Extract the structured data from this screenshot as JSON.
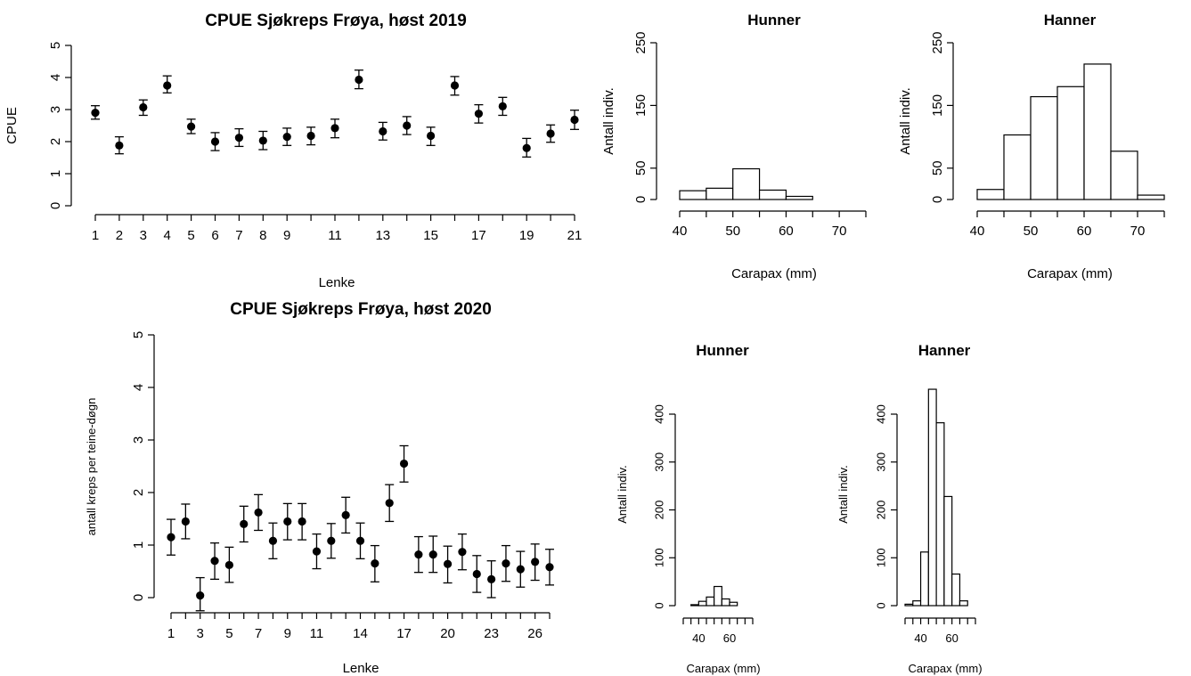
{
  "chart_data": [
    {
      "type": "scatter",
      "subtype": "point-with-error-bars",
      "title": "CPUE Sjøkreps  Frøya, høst 2019",
      "xlabel": "Lenke",
      "ylabel": "CPUE",
      "ylim": [
        0,
        5
      ],
      "yticks": [
        0,
        1,
        2,
        3,
        4,
        5
      ],
      "xticks": [
        1,
        2,
        3,
        4,
        5,
        6,
        7,
        8,
        9,
        10,
        11,
        12,
        13,
        14,
        15,
        16,
        17,
        18,
        19,
        20,
        21
      ],
      "xtick_labels": [
        "1",
        "2",
        "3",
        "4",
        "5",
        "6",
        "7",
        "8",
        "9",
        "",
        "11",
        "",
        "13",
        "",
        "15",
        "",
        "17",
        "",
        "19",
        "",
        "21"
      ],
      "x": [
        1,
        2,
        3,
        4,
        5,
        6,
        7,
        8,
        9,
        10,
        11,
        12,
        13,
        14,
        15,
        16,
        17,
        18,
        19,
        20,
        21
      ],
      "y": [
        2.9,
        1.88,
        3.07,
        3.75,
        2.47,
        2.0,
        2.12,
        2.03,
        2.15,
        2.18,
        2.42,
        3.93,
        2.32,
        2.5,
        2.18,
        3.75,
        2.87,
        3.1,
        1.8,
        2.25,
        2.68
      ],
      "err_low": [
        2.7,
        1.62,
        2.82,
        3.52,
        2.25,
        1.72,
        1.85,
        1.75,
        1.88,
        1.9,
        2.12,
        3.65,
        2.05,
        2.22,
        1.88,
        3.45,
        2.58,
        2.82,
        1.52,
        1.98,
        2.38
      ],
      "err_high": [
        3.12,
        2.15,
        3.3,
        4.05,
        2.7,
        2.28,
        2.4,
        2.32,
        2.42,
        2.45,
        2.7,
        4.23,
        2.6,
        2.78,
        2.45,
        4.03,
        3.15,
        3.38,
        2.1,
        2.52,
        2.98
      ],
      "grid": false
    },
    {
      "type": "bar",
      "subtype": "histogram",
      "title": "Hunner",
      "xlabel": "Carapax (mm)",
      "ylabel": "Antall indiv.",
      "bins": [
        [
          40,
          45
        ],
        [
          45,
          50
        ],
        [
          50,
          55
        ],
        [
          55,
          60
        ],
        [
          60,
          65
        ],
        [
          65,
          70
        ],
        [
          70,
          75
        ]
      ],
      "values": [
        14,
        18,
        49,
        15,
        5,
        0,
        0
      ],
      "xticks": [
        40,
        50,
        60,
        70
      ],
      "yticks": [
        0,
        50,
        150,
        250
      ],
      "ylim": [
        0,
        250
      ]
    },
    {
      "type": "bar",
      "subtype": "histogram",
      "title": "Hanner",
      "xlabel": "Carapax (mm)",
      "ylabel": "Antall indiv.",
      "bins": [
        [
          40,
          45
        ],
        [
          45,
          50
        ],
        [
          50,
          55
        ],
        [
          55,
          60
        ],
        [
          60,
          65
        ],
        [
          65,
          70
        ],
        [
          70,
          75
        ]
      ],
      "values": [
        16,
        103,
        164,
        180,
        216,
        77,
        7
      ],
      "xticks": [
        40,
        50,
        60,
        70
      ],
      "yticks": [
        0,
        50,
        150,
        250
      ],
      "ylim": [
        0,
        250
      ]
    },
    {
      "type": "scatter",
      "subtype": "point-with-error-bars",
      "title": "CPUE Sjøkreps Frøya, høst 2020",
      "xlabel": "Lenke",
      "ylabel": "antall kreps per teine-døgn",
      "ylim": [
        0,
        5
      ],
      "yticks": [
        0,
        1,
        2,
        3,
        4,
        5
      ],
      "xticks": [
        1,
        2,
        3,
        4,
        5,
        6,
        7,
        8,
        9,
        10,
        11,
        12,
        13,
        14,
        15,
        16,
        17,
        18,
        19,
        20,
        21,
        22,
        23,
        24,
        25,
        26,
        27
      ],
      "xtick_labels": [
        "1",
        "",
        "3",
        "",
        "5",
        "",
        "7",
        "",
        "9",
        "",
        "11",
        "",
        "",
        "14",
        "",
        "",
        "17",
        "",
        "",
        "20",
        "",
        "",
        "23",
        "",
        "",
        "26",
        ""
      ],
      "x": [
        1,
        2,
        3,
        4,
        5,
        6,
        7,
        8,
        9,
        10,
        11,
        12,
        13,
        14,
        15,
        16,
        17,
        18,
        19,
        20,
        21,
        22,
        23,
        24,
        25,
        26,
        27
      ],
      "y": [
        1.15,
        1.45,
        0.04,
        0.7,
        0.62,
        1.4,
        1.62,
        1.08,
        1.45,
        1.45,
        0.88,
        1.08,
        1.57,
        1.08,
        0.65,
        1.8,
        2.55,
        0.82,
        0.82,
        0.64,
        0.87,
        0.45,
        0.35,
        0.65,
        0.54,
        0.68,
        0.58
      ],
      "err_low": [
        0.81,
        1.12,
        -0.25,
        0.35,
        0.29,
        1.06,
        1.28,
        0.74,
        1.1,
        1.1,
        0.55,
        0.75,
        1.23,
        0.74,
        0.3,
        1.45,
        2.2,
        0.48,
        0.48,
        0.28,
        0.53,
        0.1,
        0.0,
        0.31,
        0.2,
        0.33,
        0.24
      ],
      "err_high": [
        1.49,
        1.78,
        0.38,
        1.04,
        0.96,
        1.74,
        1.96,
        1.42,
        1.79,
        1.79,
        1.21,
        1.41,
        1.91,
        1.42,
        0.99,
        2.15,
        2.89,
        1.16,
        1.17,
        0.98,
        1.21,
        0.8,
        0.7,
        0.99,
        0.88,
        1.02,
        0.92
      ],
      "grid": false
    },
    {
      "type": "bar",
      "subtype": "histogram",
      "title": "Hunner",
      "xlabel": "Carapax (mm)",
      "ylabel": "Antall indiv.",
      "bins": [
        [
          30,
          35
        ],
        [
          35,
          40
        ],
        [
          40,
          45
        ],
        [
          45,
          50
        ],
        [
          50,
          55
        ],
        [
          55,
          60
        ],
        [
          60,
          65
        ],
        [
          65,
          70
        ],
        [
          70,
          75
        ]
      ],
      "values": [
        0,
        2,
        9,
        18,
        40,
        14,
        7,
        0,
        0
      ],
      "xticks": [
        40,
        60
      ],
      "yticks": [
        0,
        100,
        200,
        300,
        400
      ],
      "ylim": [
        0,
        400
      ]
    },
    {
      "type": "bar",
      "subtype": "histogram",
      "title": "Hanner",
      "xlabel": "Carapax (mm)",
      "ylabel": "Antall indiv.",
      "bins": [
        [
          30,
          35
        ],
        [
          35,
          40
        ],
        [
          40,
          45
        ],
        [
          45,
          50
        ],
        [
          50,
          55
        ],
        [
          55,
          60
        ],
        [
          60,
          65
        ],
        [
          65,
          70
        ],
        [
          70,
          75
        ]
      ],
      "values": [
        3,
        10,
        112,
        452,
        382,
        228,
        66,
        10,
        0
      ],
      "xticks": [
        40,
        60
      ],
      "yticks": [
        0,
        100,
        200,
        300,
        400
      ],
      "ylim": [
        0,
        400
      ]
    }
  ]
}
